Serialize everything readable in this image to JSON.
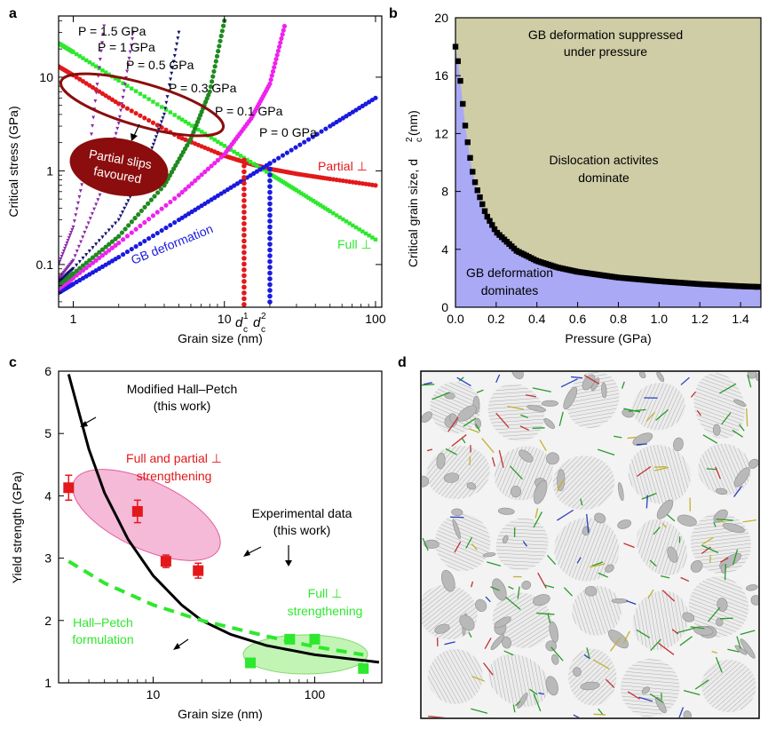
{
  "panels": {
    "a": "a",
    "b": "b",
    "c": "c",
    "d": "d"
  },
  "colors": {
    "red": "#e3181b",
    "blue": "#1a1adf",
    "green": "#2ee82e",
    "magenta": "#ee22ee",
    "darkgreen": "#1f8a1f",
    "navy": "#14146e",
    "purple": "#8a2aa8",
    "darkred": "#8b0d0d",
    "pink": "#f2a3cb",
    "lightgreen": "#b7f2a8",
    "khaki": "#cfcda6",
    "lavender": "#a9a9f5"
  },
  "chart_data": [
    {
      "panel": "a",
      "type": "line",
      "xlabel": "Grain size (nm)",
      "ylabel": "Critical stress (GPa)",
      "xscale": "log",
      "yscale": "log",
      "xlim": [
        0.8,
        110
      ],
      "ylim": [
        0.035,
        45
      ],
      "xticks": [
        "1",
        "10",
        "100"
      ],
      "yticks": [
        "0.1",
        "1",
        "10"
      ],
      "series": [
        {
          "name": "Partial ⊥",
          "color": "red",
          "x": [
            0.8,
            1,
            2,
            5,
            10,
            15,
            20,
            30,
            50,
            100
          ],
          "y": [
            13,
            10.5,
            5.2,
            2.3,
            1.45,
            1.18,
            1.05,
            0.93,
            0.82,
            0.7
          ]
        },
        {
          "name": "Full ⊥",
          "color": "green",
          "x": [
            0.8,
            1,
            2,
            5,
            10,
            20,
            30,
            50,
            100
          ],
          "y": [
            23,
            18.5,
            9.2,
            3.7,
            1.85,
            0.93,
            0.62,
            0.37,
            0.185
          ]
        },
        {
          "name": "P = 0 GPa",
          "color": "blue",
          "x": [
            0.8,
            1,
            2,
            5,
            10,
            20,
            50,
            100
          ],
          "y": [
            0.05,
            0.062,
            0.12,
            0.3,
            0.6,
            1.2,
            3.0,
            6.0
          ]
        },
        {
          "name": "P = 0.1 GPa",
          "color": "magenta",
          "x": [
            0.8,
            1,
            2,
            5,
            10,
            15,
            20,
            25
          ],
          "y": [
            0.055,
            0.072,
            0.17,
            0.55,
            1.5,
            3.6,
            8.5,
            35
          ]
        },
        {
          "name": "P = 0.3 GPa",
          "color": "darkgreen",
          "x": [
            0.8,
            1,
            2,
            4,
            6,
            8,
            10
          ],
          "y": [
            0.06,
            0.08,
            0.2,
            0.7,
            2.2,
            7,
            40
          ]
        },
        {
          "name": "P = 0.5 GPa",
          "color": "navy",
          "x": [
            0.8,
            1,
            2,
            3,
            4,
            5
          ],
          "y": [
            0.065,
            0.09,
            0.3,
            1.1,
            4.0,
            30
          ]
        },
        {
          "name": "P = 1 GPa",
          "color": "purple",
          "x": [
            0.8,
            1,
            1.5,
            2,
            2.5
          ],
          "y": [
            0.07,
            0.11,
            0.55,
            3.2,
            30
          ]
        },
        {
          "name": "P = 1.5 GPa",
          "color": "purple",
          "x": [
            0.8,
            1,
            1.3,
            1.6
          ],
          "y": [
            0.1,
            0.25,
            2.0,
            35
          ]
        }
      ],
      "verticals": [
        {
          "color": "red",
          "x": 13.5,
          "y": 1.3
        },
        {
          "color": "blue",
          "x": 20,
          "y": 1.2
        }
      ],
      "annotations": {
        "p15": "P = 1.5 GPa",
        "p1": "P = 1 GPa",
        "p05": "P = 0.5 GPa",
        "p03": "P = 0.3 GPa",
        "p01": "P = 0.1 GPa",
        "p0": "P = 0 GPa",
        "partial": "Partial ⊥",
        "full": "Full ⊥",
        "gb": "GB deformation",
        "slips1": "Partial slips",
        "slips2": "favoured",
        "dc": "d",
        "c": "c",
        "sup1": "1",
        "sup2": "2"
      }
    },
    {
      "panel": "b",
      "type": "area",
      "xlabel": "Pressure (GPa)",
      "ylabel": "Critical grain size, d",
      "ylabel_sub": "c",
      "ylabel_sup": "2",
      "ylabel_unit": " (nm)",
      "xlim": [
        0,
        1.5
      ],
      "ylim": [
        0,
        20
      ],
      "xticks": [
        "0.0",
        "0.2",
        "0.4",
        "0.6",
        "0.8",
        "1.0",
        "1.2",
        "1.4"
      ],
      "yticks": [
        "0",
        "4",
        "8",
        "12",
        "16",
        "20"
      ],
      "boundary": {
        "x": [
          0.0,
          0.01,
          0.02,
          0.03,
          0.05,
          0.08,
          0.1,
          0.15,
          0.2,
          0.3,
          0.4,
          0.5,
          0.6,
          0.8,
          1.0,
          1.2,
          1.4,
          1.5
        ],
        "y": [
          18,
          17.2,
          16.2,
          14.8,
          12.3,
          9.6,
          8.4,
          6.4,
          5.2,
          3.9,
          3.2,
          2.75,
          2.45,
          2.05,
          1.8,
          1.6,
          1.45,
          1.4
        ]
      },
      "labels": {
        "top1": "GB deformation suppressed",
        "top2": "under pressure",
        "mid1": "Dislocation activites",
        "mid2": "dominate",
        "bot1": "GB deformation",
        "bot2": "dominates"
      }
    },
    {
      "panel": "c",
      "type": "scatter",
      "xlabel": "Grain size (nm)",
      "ylabel": "Yield strength (GPa)",
      "xscale": "log",
      "xlim": [
        2.6,
        260
      ],
      "ylim": [
        1,
        6
      ],
      "xticks": [
        "10",
        "100"
      ],
      "yticks": [
        "1",
        "2",
        "3",
        "4",
        "5",
        "6"
      ],
      "modified_hall_petch": {
        "x": [
          3,
          4,
          5,
          7,
          10,
          15,
          20,
          30,
          50,
          100,
          200,
          250
        ],
        "y": [
          5.95,
          4.75,
          4.05,
          3.3,
          2.72,
          2.25,
          2.0,
          1.78,
          1.6,
          1.45,
          1.36,
          1.33
        ]
      },
      "hall_petch": {
        "x": [
          3,
          5,
          10,
          20,
          50,
          100,
          200
        ],
        "y": [
          2.95,
          2.6,
          2.25,
          2.0,
          1.75,
          1.58,
          1.45
        ]
      },
      "experimental_red": {
        "x": [
          3,
          8,
          12,
          19
        ],
        "y": [
          4.13,
          3.75,
          2.95,
          2.8
        ],
        "err": [
          0.2,
          0.18,
          0.1,
          0.12
        ]
      },
      "experimental_green": {
        "x": [
          40,
          70,
          100,
          200
        ],
        "y": [
          1.32,
          1.7,
          1.7,
          1.23
        ]
      },
      "labels": {
        "mhp1": "Modified Hall–Petch",
        "mhp2": "(this work)",
        "fp1": "Full and partial ⊥",
        "fp2": "strengthening",
        "exp1": "Experimental data",
        "exp2": "(this work)",
        "full1": "Full ⊥",
        "full2": "strengthening",
        "hp1": "Hall–Petch",
        "hp2": "formulation"
      }
    }
  ]
}
